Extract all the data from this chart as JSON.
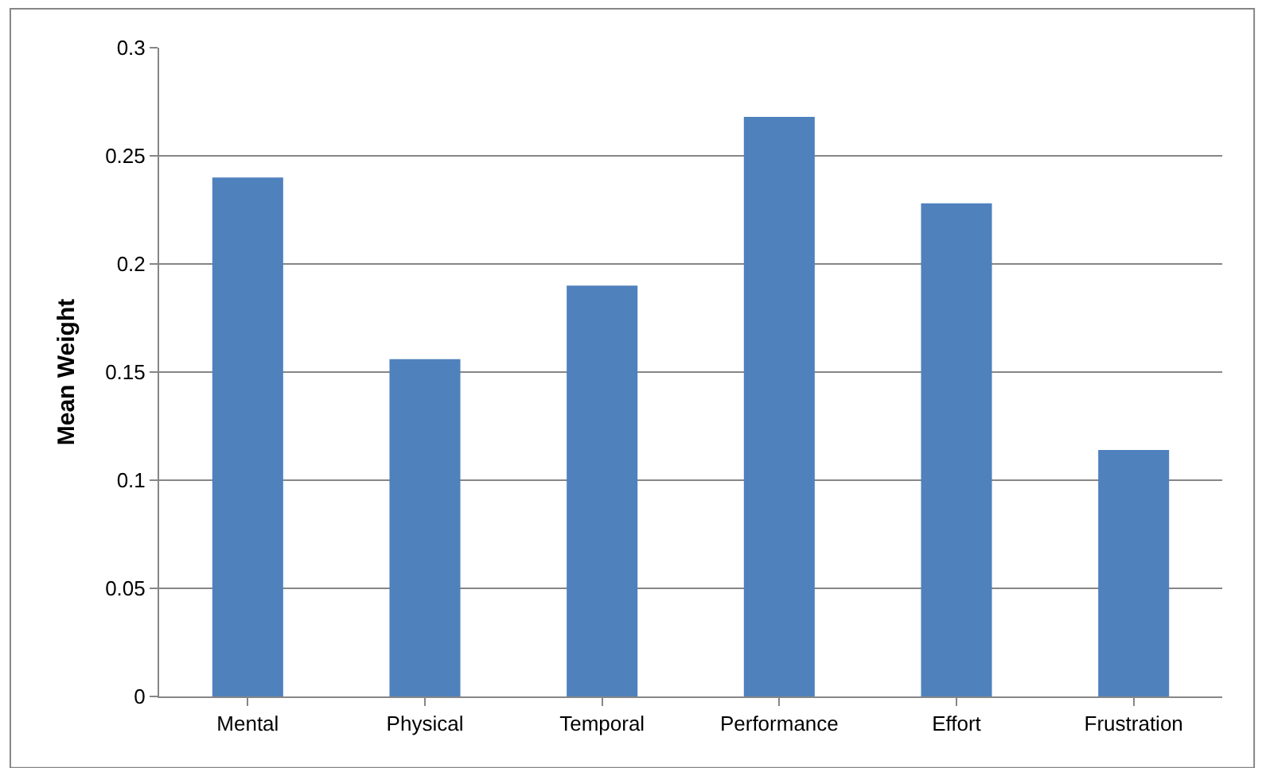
{
  "chart_data": {
    "type": "bar",
    "ylabel": "Mean Weight",
    "categories": [
      "Mental",
      "Physical",
      "Temporal",
      "Performance",
      "Effort",
      "Frustration"
    ],
    "values": [
      0.24,
      0.156,
      0.19,
      0.268,
      0.228,
      0.114
    ],
    "color": "#4f81bd",
    "ylim": [
      0,
      0.3
    ],
    "yticks": [
      0,
      0.05,
      0.1,
      0.15,
      0.2,
      0.25,
      0.3
    ],
    "grid": "y"
  }
}
